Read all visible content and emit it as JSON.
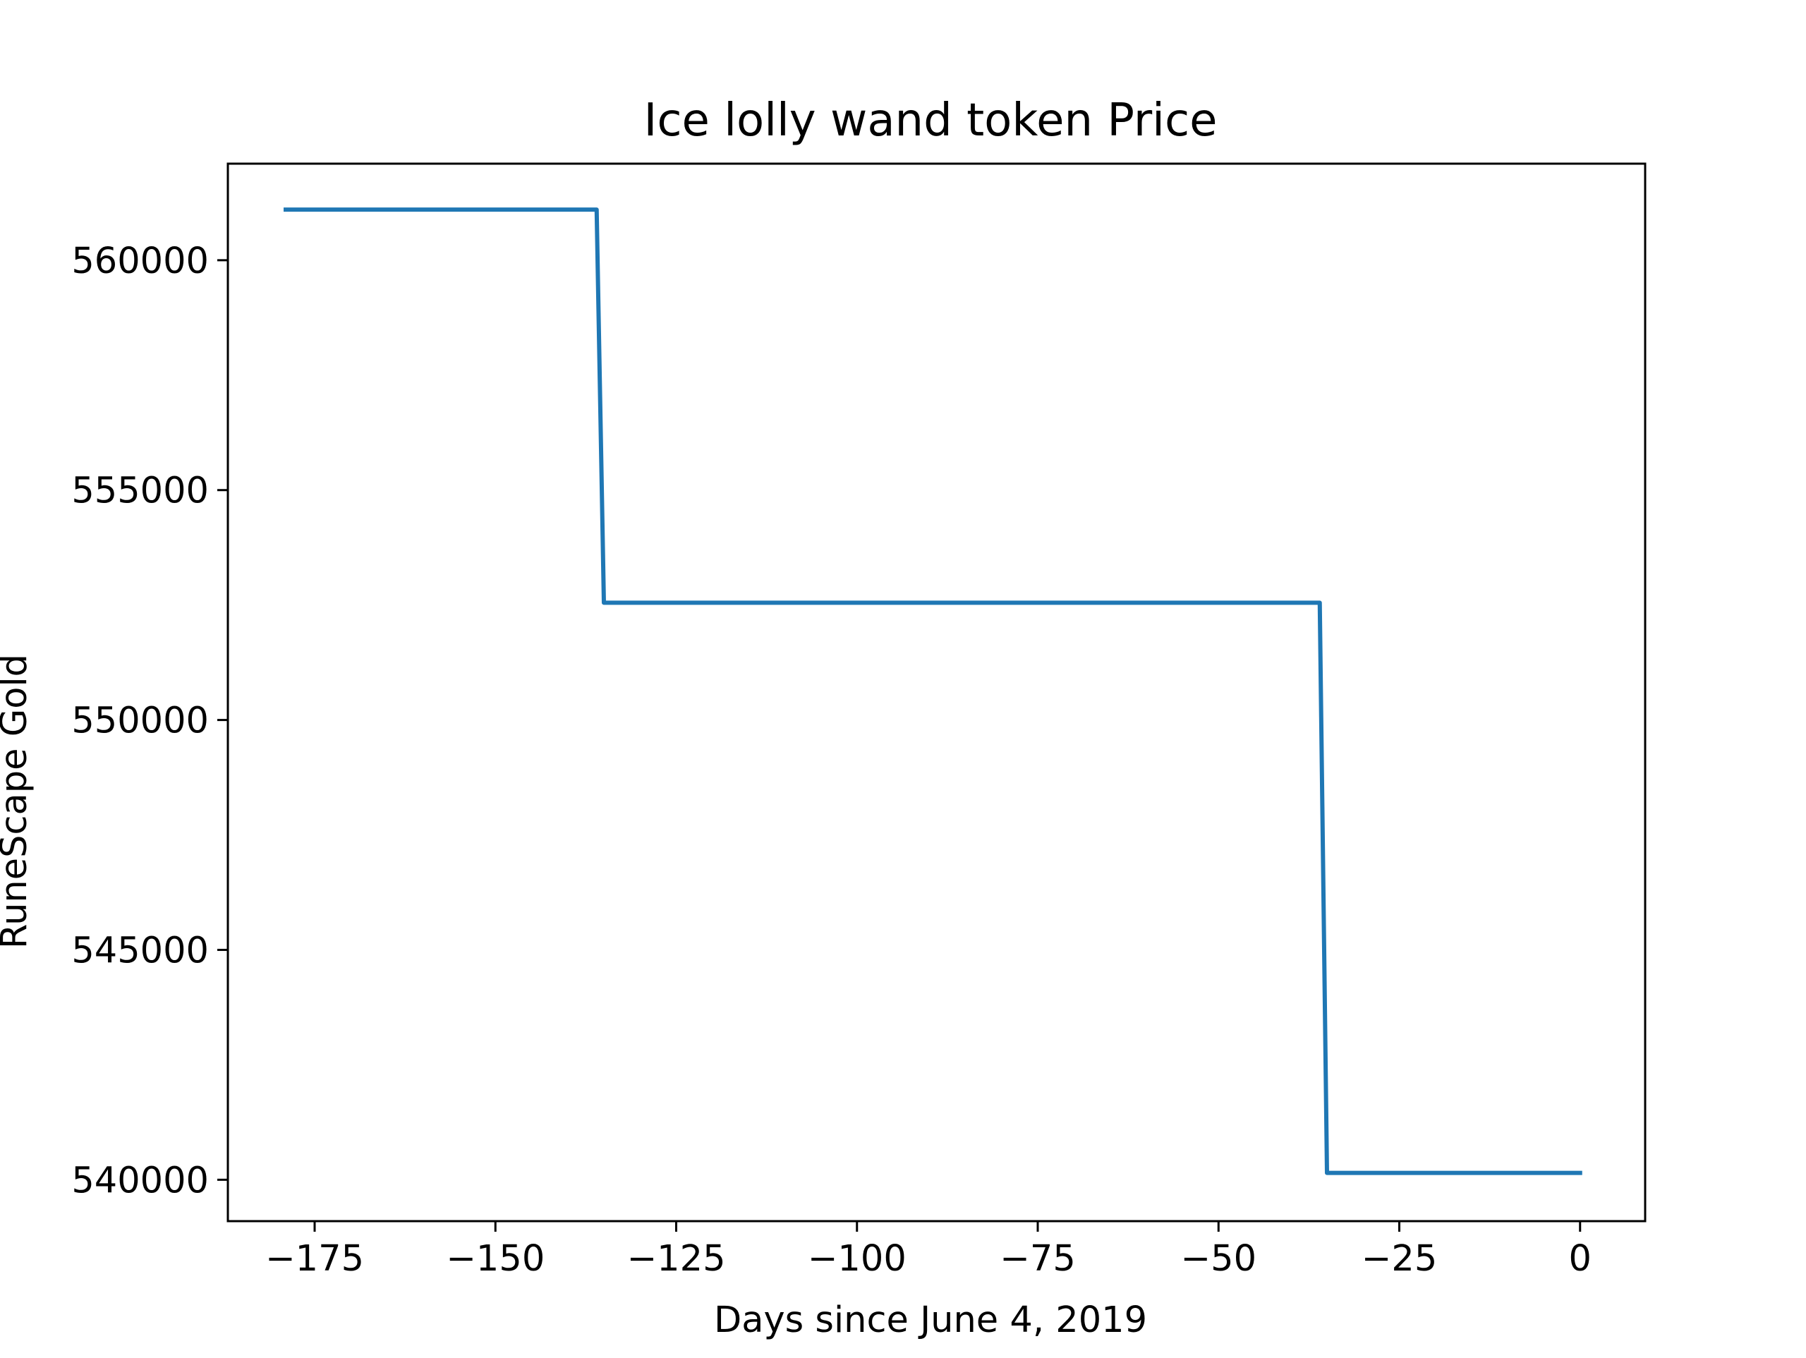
{
  "chart_data": {
    "type": "line",
    "title": "Ice lolly wand token Price",
    "xlabel": "Days since June 4, 2019",
    "ylabel": "RuneScape Gold",
    "xlim": [
      -187,
      9
    ],
    "ylim": [
      539100,
      562100
    ],
    "x_ticks": [
      -175,
      -150,
      -125,
      -100,
      -75,
      -50,
      -25,
      0
    ],
    "x_tick_labels": [
      "−175",
      "−150",
      "−125",
      "−100",
      "−75",
      "−50",
      "−25",
      "0"
    ],
    "y_ticks": [
      540000,
      545000,
      550000,
      555000,
      560000
    ],
    "y_tick_labels": [
      "540000",
      "545000",
      "550000",
      "555000",
      "560000"
    ],
    "grid": false,
    "legend": false,
    "series": [
      {
        "color": "#1f77b4",
        "x": [
          -179,
          -136,
          -135,
          -36,
          -35,
          0
        ],
        "y": [
          561100,
          561100,
          552550,
          552550,
          540150,
          540150
        ]
      }
    ]
  }
}
